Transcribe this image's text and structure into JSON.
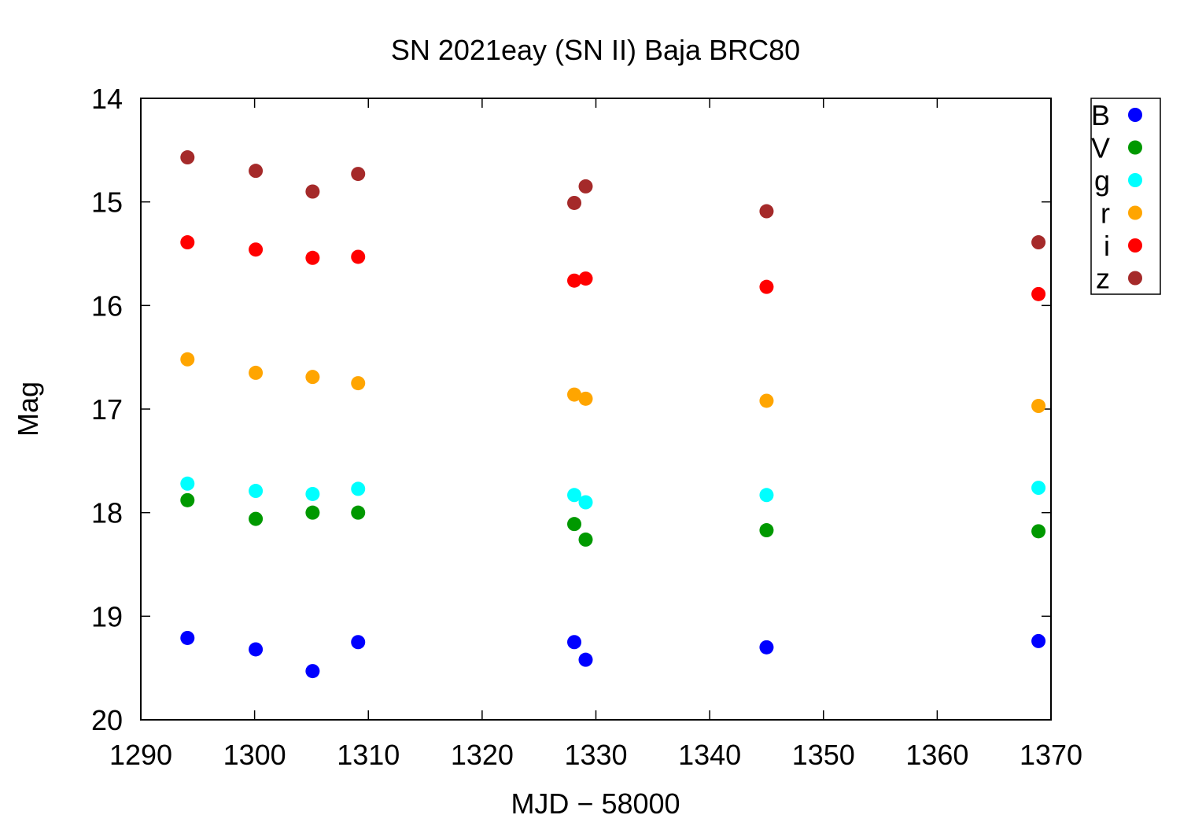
{
  "chart_data": {
    "type": "scatter",
    "title": "SN 2021eay (SN II) Baja BRC80",
    "xlabel": "MJD − 58000",
    "ylabel": "Mag",
    "xlim": [
      1290,
      1370
    ],
    "ylim": [
      14,
      20
    ],
    "y_inverted": true,
    "xticks": [
      1290,
      1300,
      1310,
      1320,
      1330,
      1340,
      1350,
      1360,
      1370
    ],
    "yticks": [
      14,
      15,
      16,
      17,
      18,
      19,
      20
    ],
    "grid": false,
    "legend_position": "outside-top-right",
    "series": [
      {
        "name": "B",
        "color": "#0000ff",
        "points": [
          [
            1294.1,
            19.21
          ],
          [
            1300.1,
            19.32
          ],
          [
            1305.1,
            19.53
          ],
          [
            1309.1,
            19.25
          ],
          [
            1328.1,
            19.25
          ],
          [
            1329.1,
            19.42
          ],
          [
            1345.0,
            19.3
          ],
          [
            1368.9,
            19.24
          ]
        ]
      },
      {
        "name": "V",
        "color": "#009900",
        "points": [
          [
            1294.1,
            17.88
          ],
          [
            1300.1,
            18.06
          ],
          [
            1305.1,
            18.0
          ],
          [
            1309.1,
            18.0
          ],
          [
            1328.1,
            18.11
          ],
          [
            1329.1,
            18.26
          ],
          [
            1345.0,
            18.17
          ],
          [
            1368.9,
            18.18
          ]
        ]
      },
      {
        "name": "g",
        "color": "#00ffff",
        "points": [
          [
            1294.1,
            17.72
          ],
          [
            1300.1,
            17.79
          ],
          [
            1305.1,
            17.82
          ],
          [
            1309.1,
            17.77
          ],
          [
            1328.1,
            17.83
          ],
          [
            1329.1,
            17.9
          ],
          [
            1345.0,
            17.83
          ],
          [
            1368.9,
            17.76
          ]
        ]
      },
      {
        "name": "r",
        "color": "#ffa500",
        "points": [
          [
            1294.1,
            16.52
          ],
          [
            1300.1,
            16.65
          ],
          [
            1305.1,
            16.69
          ],
          [
            1309.1,
            16.75
          ],
          [
            1328.1,
            16.86
          ],
          [
            1329.1,
            16.9
          ],
          [
            1345.0,
            16.92
          ],
          [
            1368.9,
            16.97
          ]
        ]
      },
      {
        "name": "i",
        "color": "#ff0000",
        "points": [
          [
            1294.1,
            15.39
          ],
          [
            1300.1,
            15.46
          ],
          [
            1305.1,
            15.54
          ],
          [
            1309.1,
            15.53
          ],
          [
            1328.1,
            15.76
          ],
          [
            1329.1,
            15.74
          ],
          [
            1345.0,
            15.82
          ],
          [
            1368.9,
            15.89
          ]
        ]
      },
      {
        "name": "z",
        "color": "#a52a2a",
        "points": [
          [
            1294.1,
            14.57
          ],
          [
            1300.1,
            14.7
          ],
          [
            1305.1,
            14.9
          ],
          [
            1309.1,
            14.73
          ],
          [
            1328.1,
            15.01
          ],
          [
            1329.1,
            14.85
          ],
          [
            1345.0,
            15.09
          ],
          [
            1368.9,
            15.39
          ]
        ]
      }
    ]
  }
}
